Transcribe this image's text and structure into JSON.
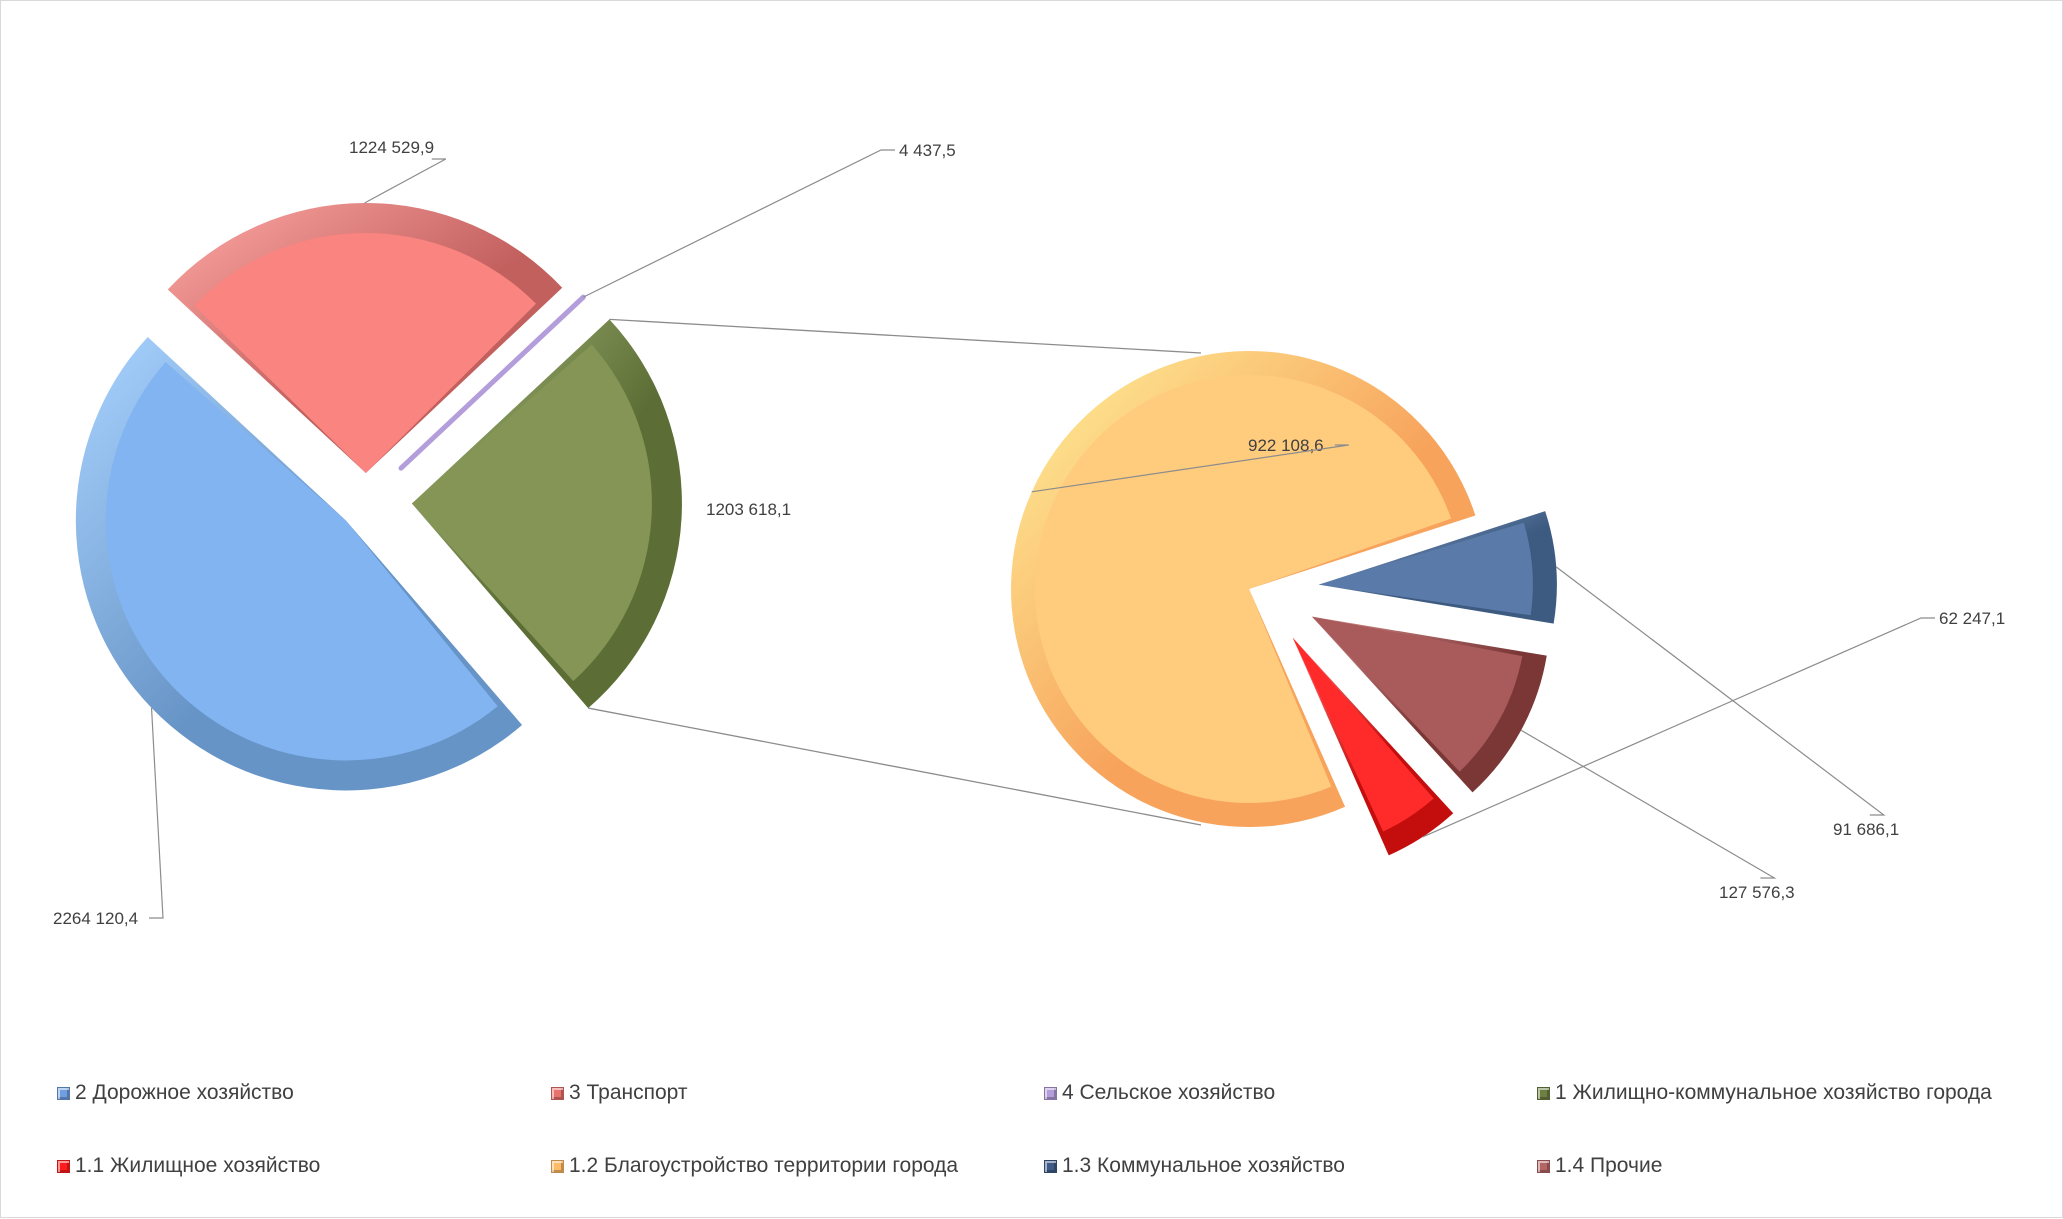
{
  "chart_data": {
    "type": "pie",
    "subtype": "pie-of-pie",
    "title": "",
    "main_pie": [
      {
        "label": "2 Дорожное хозяйство",
        "value": 2264120.4,
        "display": "2264 120,4",
        "color": "#82b4f2",
        "side": "#6794c6",
        "highlight": "#a9d3ff"
      },
      {
        "label": "3 Транспорт",
        "value": 1224529.9,
        "display": "1224 529,9",
        "color": "#f98480",
        "side": "#c2605e",
        "highlight": "#ffa8a5"
      },
      {
        "label": "4 Сельское хозяйство",
        "value": 4437.5,
        "display": "4 437,5",
        "color": "#b39ddb",
        "side": "#8f79b8",
        "highlight": "#cdb8ee"
      },
      {
        "label": "1 Жилищно-коммунальное  хозяйство города",
        "value": 1203618.1,
        "display": "1203 618,1",
        "color": "#849556",
        "side": "#5c6e35",
        "highlight": "#a9ba7c"
      }
    ],
    "secondary_pie": [
      {
        "label": "1.2 Благоустройство территории города",
        "value": 922108.6,
        "display": "922 108,6",
        "color": "#ffcc7e",
        "side": "#f7a35c",
        "highlight": "#fff29a"
      },
      {
        "label": "1.3 Коммунальное хозяйство",
        "value": 91686.1,
        "display": "91 686,1",
        "color": "#5a7ba9",
        "side": "#3d5a80",
        "highlight": "#8eabd8"
      },
      {
        "label": "1.4 Прочие",
        "value": 127576.3,
        "display": "127 576,3",
        "color": "#a85b5a",
        "side": "#7a3736",
        "highlight": "#d38a88"
      },
      {
        "label": "1.1 Жилищное хозяйство",
        "value": 62247.1,
        "display": "62 247,1",
        "color": "#ff2a2a",
        "side": "#c40e0e",
        "highlight": "#ff7a7a"
      }
    ],
    "legend_position": "bottom",
    "legend": [
      {
        "label": "2 Дорожное хозяйство",
        "color": "#6f9fe0"
      },
      {
        "label": "3 Транспорт",
        "color": "#e8726e"
      },
      {
        "label": "4 Сельское хозяйство",
        "color": "#b39ddb"
      },
      {
        "label": "1 Жилищно-коммунальное  хозяйство города",
        "color": "#6e7f41"
      },
      {
        "label": "1.1 Жилищное хозяйство",
        "color": "#ff1c1c"
      },
      {
        "label": "1.2 Благоустройство территории города",
        "color": "#ffbb66"
      },
      {
        "label": "1.3 Коммунальное хозяйство",
        "color": "#3e5c87"
      },
      {
        "label": "1.4 Прочие",
        "color": "#b56664"
      }
    ]
  }
}
